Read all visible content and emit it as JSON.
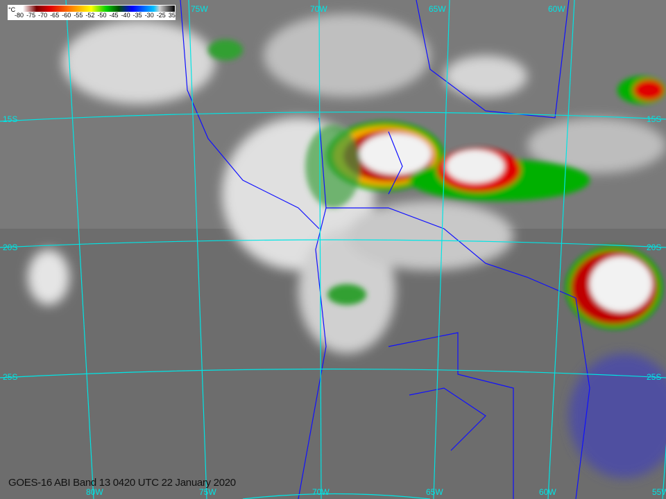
{
  "caption": "GOES-16 ABI Band 13 0420 UTC 22 January 2020",
  "colorbar": {
    "unit": "°C",
    "ticks": [
      "-80",
      "-75",
      "-70",
      "-65",
      "-60",
      "-55",
      "-52",
      "-50",
      "-45",
      "-40",
      "-35",
      "-30",
      "-25",
      "35"
    ]
  },
  "grid_labels": {
    "lon_bottom": [
      "80W",
      "75W",
      "70W",
      "65W",
      "60W",
      "55W"
    ],
    "lon_top": [
      "75W",
      "70W",
      "65W",
      "60W"
    ],
    "lat_left": [
      "15S",
      "20S",
      "25S"
    ],
    "lat_right": [
      "15S",
      "20S",
      "25S"
    ]
  },
  "colors": {
    "grid": "#00e5e5",
    "borders": "#1010ff",
    "background": "#6f6f6f"
  }
}
